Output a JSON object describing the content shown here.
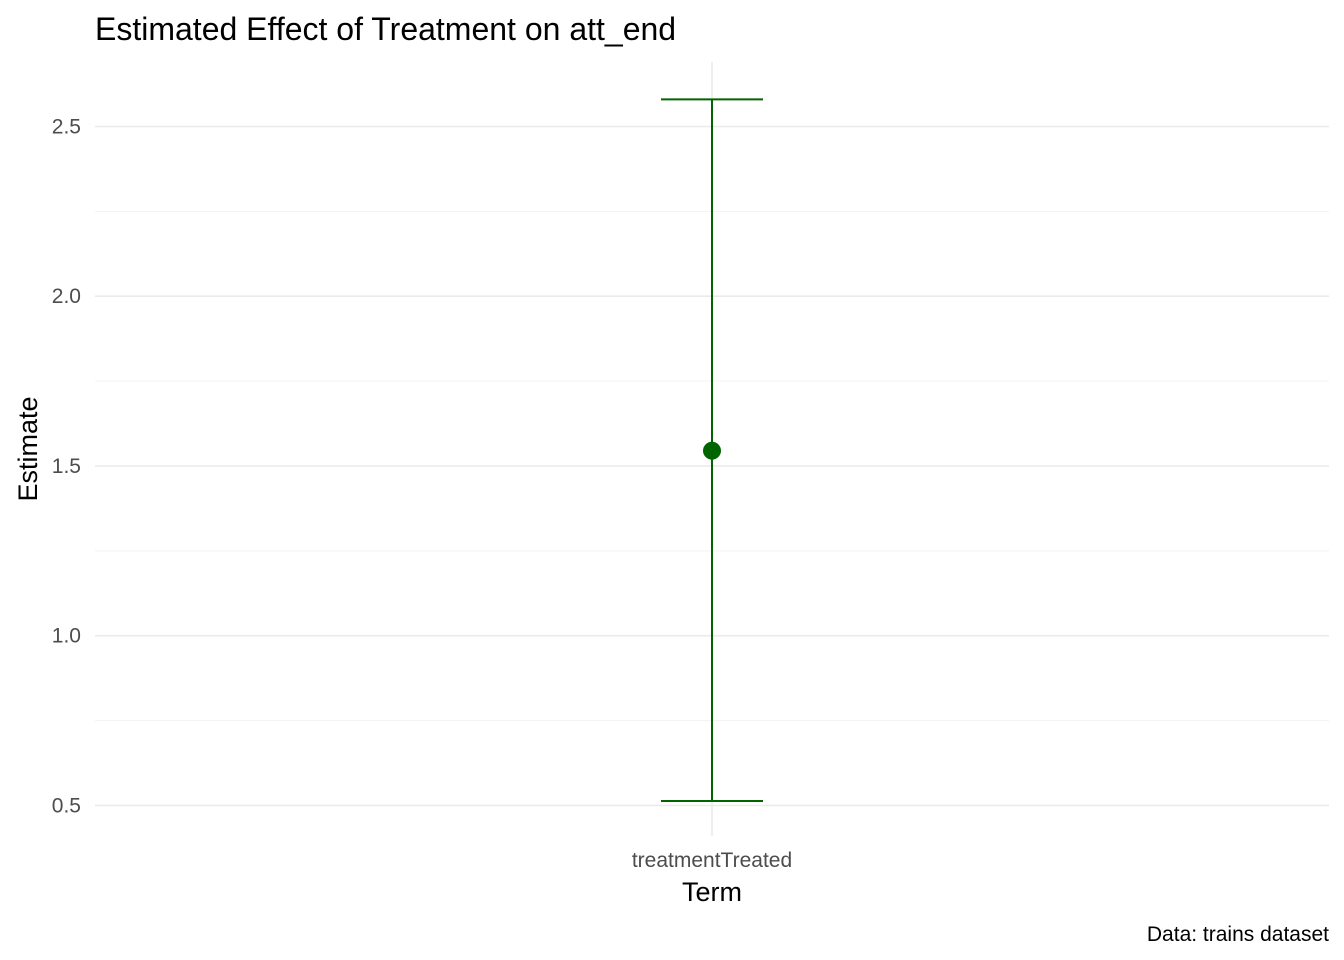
{
  "chart_data": {
    "type": "scatter",
    "title": "Estimated Effect of Treatment on att_end",
    "xlabel": "Term",
    "ylabel": "Estimate",
    "caption": "Data: trains dataset",
    "categories": [
      "treatmentTreated"
    ],
    "points": [
      {
        "term": "treatmentTreated",
        "estimate": 1.545,
        "conf_low": 0.513,
        "conf_high": 2.58
      }
    ],
    "ylim": [
      0.41,
      2.69
    ],
    "y_ticks": [
      0.5,
      1.0,
      1.5,
      2.0,
      2.5
    ],
    "y_tick_labels": [
      "0.5",
      "1.0",
      "1.5",
      "2.0",
      "2.5"
    ],
    "grid": true,
    "color": "#006400",
    "grid_color": "#ebebeb"
  }
}
